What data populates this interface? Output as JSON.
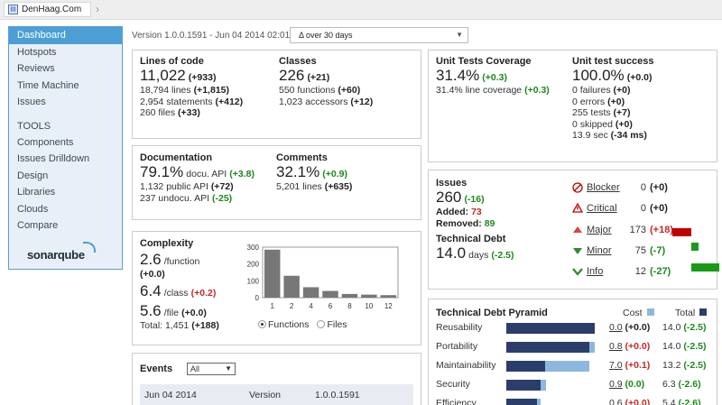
{
  "breadcrumb": {
    "project": "DenHaag.Com",
    "icon": "project-icon"
  },
  "sidebar": {
    "items": [
      "Dashboard",
      "Hotspots",
      "Reviews",
      "Time Machine",
      "Issues"
    ],
    "tools_label": "TOOLS",
    "tools": [
      "Components",
      "Issues Drilldown",
      "Design",
      "Libraries",
      "Clouds",
      "Compare"
    ],
    "logo": "sonarqube"
  },
  "header": {
    "version": "Version 1.0.0.1591 - Jun 04 2014 02:01",
    "period": "Δ over 30 days"
  },
  "lines": {
    "title": "Lines of code",
    "value": "11,022",
    "delta": "(+933)",
    "l1": "18,794 lines",
    "l1d": "(+1,815)",
    "l2": "2,954 statements",
    "l2d": "(+412)",
    "l3": "260 files",
    "l3d": "(+33)"
  },
  "classes": {
    "title": "Classes",
    "value": "226",
    "delta": "(+21)",
    "l1": "550 functions",
    "l1d": "(+60)",
    "l2": "1,023 accessors",
    "l2d": "(+12)"
  },
  "documentation": {
    "title": "Documentation",
    "value": "79.1%",
    "unit": "docu. API",
    "delta": "(+3.8)",
    "l1": "1,132 public API",
    "l1d": "(+72)",
    "l2": "237 undocu. API",
    "l2d": "(-25)"
  },
  "comments": {
    "title": "Comments",
    "value": "32.1%",
    "delta": "(+0.9)",
    "l1": "5,201 lines",
    "l1d": "(+635)"
  },
  "complexity": {
    "title": "Complexity",
    "fn_value": "2.6",
    "fn_unit": "/function",
    "fn_delta": "(+0.0)",
    "cls_value": "6.4",
    "cls_unit": "/class",
    "cls_delta": "(+0.2)",
    "file_value": "5.6",
    "file_unit": "/file",
    "file_delta": "(+0.0)",
    "total": "Total: 1,451",
    "total_delta": "(+188)",
    "radio_functions": "Functions",
    "radio_files": "Files"
  },
  "chart_data": {
    "type": "bar",
    "categories": [
      "1",
      "2",
      "4",
      "6",
      "8",
      "10",
      "12"
    ],
    "values": [
      285,
      130,
      62,
      40,
      22,
      18,
      15
    ],
    "ylim": [
      0,
      300
    ],
    "yticks": [
      "300",
      "200",
      "100",
      "0"
    ],
    "grid": false
  },
  "events": {
    "title": "Events",
    "filter": "All",
    "row": {
      "date": "Jun 04 2014",
      "category": "Version",
      "name": "1.0.0.1591"
    }
  },
  "coverage": {
    "title": "Unit Tests Coverage",
    "value": "31.4%",
    "delta": "(+0.3)",
    "l1": "31.4% line coverage",
    "l1d": "(+0.3)"
  },
  "success": {
    "title": "Unit test success",
    "value": "100.0%",
    "delta": "(+0.0)",
    "l1": "0 failures",
    "l1d": "(+0)",
    "l2": "0 errors",
    "l2d": "(+0)",
    "l3": "255 tests",
    "l3d": "(+7)",
    "l4": "0 skipped",
    "l4d": "(+0)",
    "l5": "13.9 sec",
    "l5d": "(-34 ms)"
  },
  "issues": {
    "title": "Issues",
    "value": "260",
    "delta": "(-16)",
    "added_label": "Added:",
    "added": "73",
    "removed_label": "Removed:",
    "removed": "89",
    "debt_title": "Technical Debt",
    "debt_value": "14.0",
    "debt_unit": "days",
    "debt_delta": "(-2.5)",
    "severities": [
      {
        "name": "Blocker",
        "count": "0",
        "delta": "(+0)",
        "icon": "blocker-icon",
        "bar": 0,
        "color": ""
      },
      {
        "name": "Critical",
        "count": "0",
        "delta": "(+0)",
        "icon": "critical-icon",
        "bar": 0,
        "color": ""
      },
      {
        "name": "Major",
        "count": "173",
        "delta": "(+18)",
        "icon": "major-icon",
        "bar": 18,
        "color": "#c00000"
      },
      {
        "name": "Minor",
        "count": "75",
        "delta": "(-7)",
        "icon": "minor-icon",
        "bar": -7,
        "color": "#1a9a1a"
      },
      {
        "name": "Info",
        "count": "12",
        "delta": "(-27)",
        "icon": "info-icon",
        "bar": -27,
        "color": "#1a9a1a"
      }
    ]
  },
  "pyramid": {
    "title": "Technical Debt Pyramid",
    "cost_label": "Cost",
    "total_label": "Total",
    "rows": [
      {
        "name": "Reusability",
        "cost": "0.0",
        "cost_d": "(+0.0)",
        "total": "14.0",
        "total_d": "(-2.5)",
        "cost_frac": 0.0,
        "total_frac": 1.0
      },
      {
        "name": "Portability",
        "cost": "0.8",
        "cost_d": "(+0.0)",
        "total": "14.0",
        "total_d": "(-2.5)",
        "cost_frac": 0.06,
        "total_frac": 1.0
      },
      {
        "name": "Maintainability",
        "cost": "7.0",
        "cost_d": "(+0.1)",
        "total": "13.2",
        "total_d": "(-2.5)",
        "cost_frac": 0.5,
        "total_frac": 0.94
      },
      {
        "name": "Security",
        "cost": "0.9",
        "cost_d": "(0.0)",
        "total": "6.3",
        "total_d": "(-2.6)",
        "cost_frac": 0.064,
        "total_frac": 0.45
      },
      {
        "name": "Efficiency",
        "cost": "0.6",
        "cost_d": "(+0.0)",
        "total": "5.4",
        "total_d": "(-2.6)",
        "cost_frac": 0.043,
        "total_frac": 0.385
      }
    ]
  }
}
